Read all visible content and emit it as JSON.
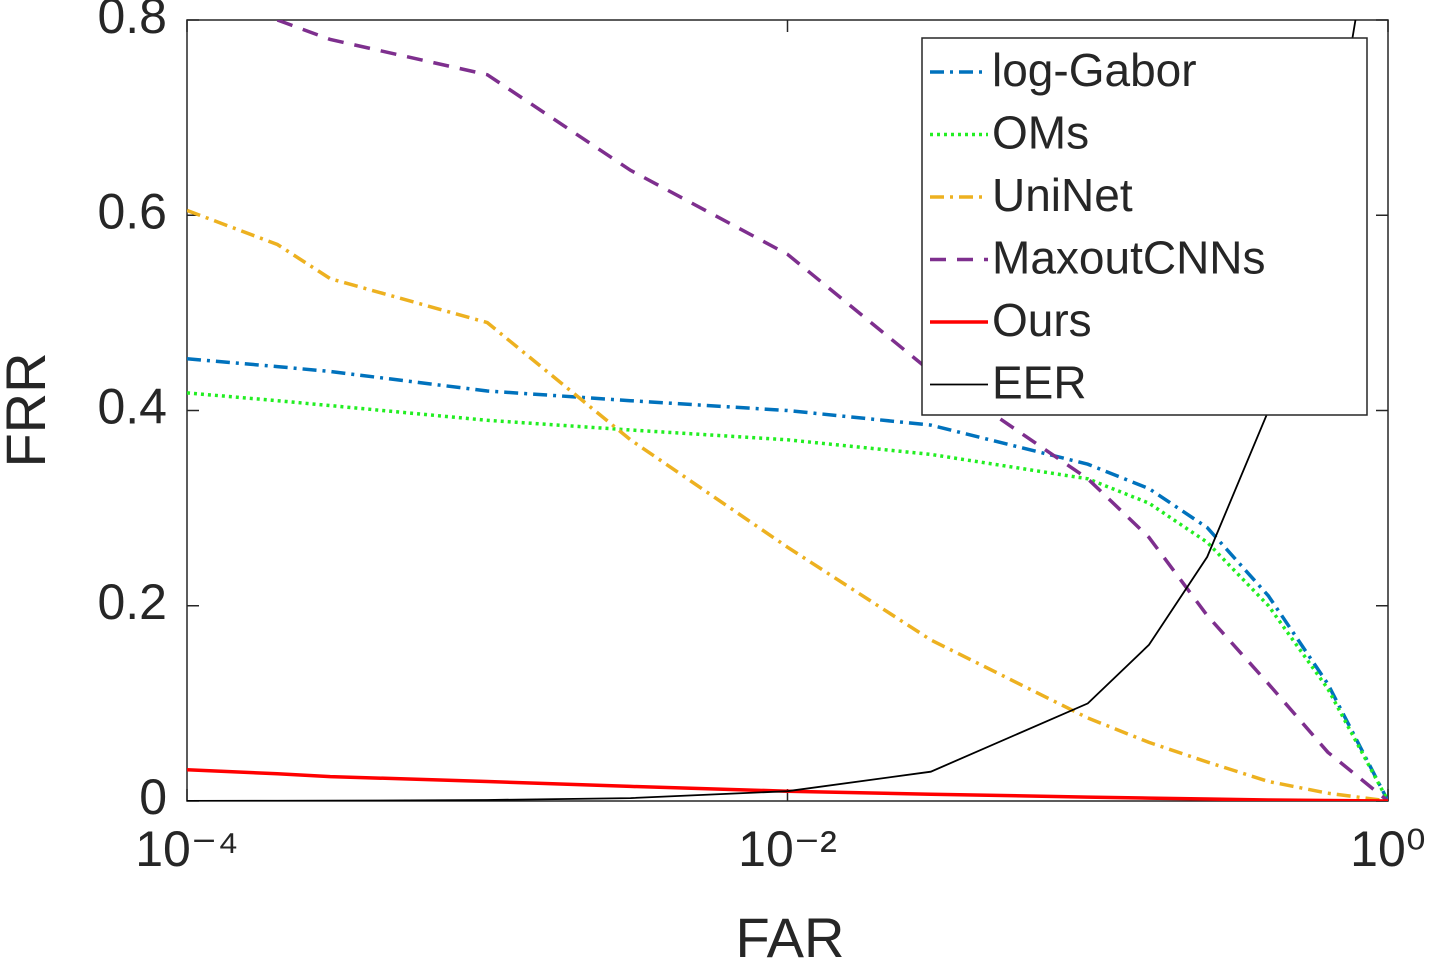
{
  "chart_data": {
    "type": "line",
    "xlabel": "FAR",
    "ylabel": "FRR",
    "xscale": "log",
    "xlim": [
      0.0001,
      1
    ],
    "ylim": [
      0,
      0.8
    ],
    "xticks": [
      {
        "value": 0.0001,
        "label": "10⁻⁴"
      },
      {
        "value": 0.01,
        "label": "10⁻²"
      },
      {
        "value": 1,
        "label": "10⁰"
      }
    ],
    "yticks": [
      0,
      0.2,
      0.4,
      0.6,
      0.8
    ],
    "legend": "upper right",
    "x": [
      0.0001,
      0.0002,
      0.0003,
      0.001,
      0.003,
      0.01,
      0.03,
      0.1,
      0.16,
      0.25,
      0.4,
      0.63,
      1
    ],
    "series": [
      {
        "name": "log-Gabor",
        "color": "#0072bd",
        "dash": "14 6 3 6",
        "width": 3.5,
        "values": [
          0.453,
          0.445,
          0.44,
          0.42,
          0.41,
          0.4,
          0.385,
          0.345,
          0.32,
          0.28,
          0.21,
          0.12,
          0
        ]
      },
      {
        "name": "OMs",
        "color": "#22ee22",
        "dash": "3 4",
        "width": 3.5,
        "values": [
          0.418,
          0.41,
          0.405,
          0.39,
          0.38,
          0.37,
          0.355,
          0.33,
          0.305,
          0.265,
          0.2,
          0.115,
          0
        ]
      },
      {
        "name": "UniNet",
        "color": "#edb120",
        "dash": "14 6 3 6",
        "width": 3.5,
        "values": [
          0.605,
          0.57,
          0.535,
          0.49,
          0.37,
          0.26,
          0.165,
          0.085,
          0.06,
          0.04,
          0.02,
          0.008,
          0
        ]
      },
      {
        "name": "MaxoutCNNs",
        "color": "#7e2f8e",
        "dash": "16 11",
        "width": 3.5,
        "values": [
          null,
          0.8,
          0.78,
          0.744,
          0.646,
          0.56,
          0.44,
          0.33,
          0.27,
          0.19,
          0.12,
          0.05,
          0
        ]
      },
      {
        "name": "Ours",
        "color": "#ff0000",
        "dash": "none",
        "width": 3.5,
        "values": [
          0.032,
          0.028,
          0.025,
          0.02,
          0.015,
          0.01,
          0.007,
          0.004,
          0.003,
          0.002,
          0.001,
          0.0005,
          0
        ]
      },
      {
        "name": "EER",
        "color": "#000000",
        "dash": "none",
        "width": 1.8,
        "values": [
          0.0001,
          0.0002,
          0.0003,
          0.001,
          0.003,
          0.01,
          0.03,
          0.1,
          0.16,
          0.25,
          0.4,
          0.63,
          1
        ]
      }
    ]
  }
}
